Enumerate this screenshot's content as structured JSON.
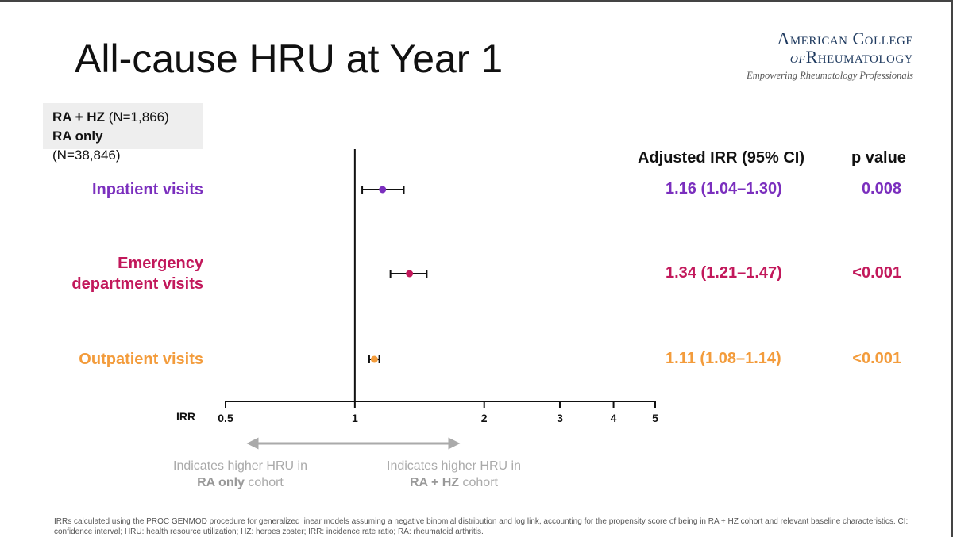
{
  "slide": {
    "title": "All-cause HRU at Year 1",
    "logo": {
      "line1": "American College",
      "line2_prefix": "of",
      "line2_main": "Rheumatology",
      "tagline": "Empowering Rheumatology Professionals"
    },
    "legend": {
      "ra_hz_bold": "RA + HZ",
      "ra_hz_n": " (N=1,866)",
      "ra_only_bold": "RA only",
      "ra_only_n": "(N=38,846)"
    },
    "col_irr_header": "Adjusted IRR (95% CI)",
    "col_p_header": "p value",
    "indicator_left_line1": "Indicates higher HRU in",
    "indicator_left_bold": "RA only",
    "indicator_left_rest": " cohort",
    "indicator_right_line1": "Indicates higher HRU in",
    "indicator_right_bold": "RA + HZ",
    "indicator_right_rest": " cohort",
    "footnote": "IRRs calculated using the PROC GENMOD procedure for generalized linear models assuming a negative binomial distribution and log link, accounting for the propensity score of being in RA + HZ cohort and relevant baseline characteristics. CI: confidence interval; HRU: health resource utilization; HZ: herpes zoster; IRR: incidence rate ratio; RA: rheumatoid arthritis."
  },
  "chart_data": {
    "type": "forest",
    "xlabel": "IRR",
    "x_scale": "log",
    "xlim": [
      0.5,
      5
    ],
    "x_ticks": [
      {
        "value": 0.5,
        "label": "0.5"
      },
      {
        "value": 1,
        "label": "1"
      },
      {
        "value": 2,
        "label": "2"
      },
      {
        "value": 3,
        "label": "3"
      },
      {
        "value": 4,
        "label": "4"
      },
      {
        "value": 5,
        "label": "5"
      }
    ],
    "reference_line": 1,
    "series": [
      {
        "label_lines": [
          "Inpatient visits"
        ],
        "irr": 1.16,
        "ci_low": 1.04,
        "ci_high": 1.3,
        "irr_text": "1.16 (1.04–1.30)",
        "p_text": "0.008",
        "color": "#7b2fbe"
      },
      {
        "label_lines": [
          "Emergency",
          "department visits"
        ],
        "irr": 1.34,
        "ci_low": 1.21,
        "ci_high": 1.47,
        "irr_text": "1.34 (1.21–1.47)",
        "p_text": "<0.001",
        "color": "#c2185b"
      },
      {
        "label_lines": [
          "Outpatient visits"
        ],
        "irr": 1.11,
        "ci_low": 1.08,
        "ci_high": 1.14,
        "irr_text": "1.11 (1.08–1.14)",
        "p_text": "<0.001",
        "color": "#f39c3c"
      }
    ]
  }
}
